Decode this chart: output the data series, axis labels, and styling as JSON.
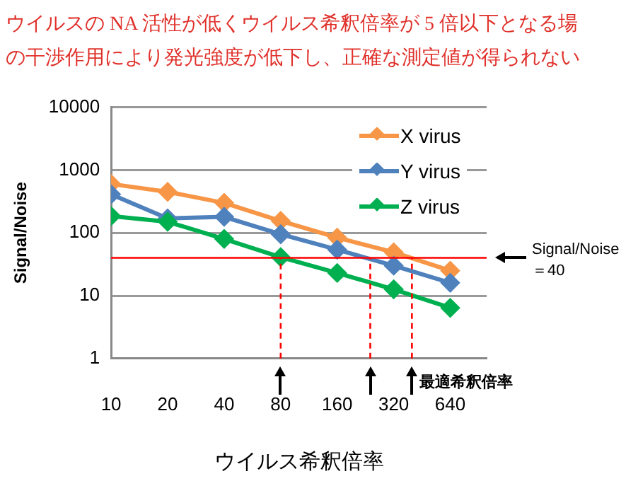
{
  "chart_data": {
    "type": "line",
    "title": "ウイルスの NA 活性が低くウイルス希釈倍率が 5 倍以下となる場",
    "subtitle": "の干渉作用により発光強度が低下し、正確な測定値が得られない",
    "xlabel": "ウイルス希釈倍率",
    "ylabel": "Signal/Noise",
    "x": [
      10,
      20,
      40,
      80,
      160,
      320,
      640
    ],
    "series": [
      {
        "name": "X virus",
        "color": "#f79646",
        "values": [
          600,
          450,
          300,
          155,
          84,
          49,
          25
        ]
      },
      {
        "name": "Y virus",
        "color": "#4f81bd",
        "values": [
          410,
          170,
          180,
          95,
          54,
          30,
          16
        ]
      },
      {
        "name": "Z virus",
        "color": "#00b050",
        "values": [
          185,
          150,
          80,
          41,
          23,
          12.6,
          6.4
        ]
      }
    ],
    "log": "xy",
    "xlim": [
      10,
      1000
    ],
    "xticks": [
      10,
      20,
      40,
      80,
      160,
      320,
      640
    ],
    "ylim": [
      1,
      10000
    ],
    "yticks": [
      1,
      10,
      100,
      1000,
      10000
    ],
    "grid": "y",
    "legend": "top right",
    "marker": "diamond",
    "line_style": "solid",
    "ref_lines": [
      {
        "axis": "y",
        "value": 40,
        "label": "Signal/Noise\n＝40",
        "color": "#ff0000",
        "line_style": "solid"
      },
      {
        "axis": "x",
        "value": 80,
        "label": null,
        "color": "#ff0000",
        "line_style": "dashed"
      },
      {
        "axis": "x",
        "value": 240,
        "label": null,
        "color": "#ff0000",
        "line_style": "dashed"
      },
      {
        "axis": "x",
        "value": 400,
        "label": null,
        "color": "#ff0000",
        "line_style": "dashed"
      }
    ],
    "annotations": [
      "最適希釈倍率"
    ]
  }
}
